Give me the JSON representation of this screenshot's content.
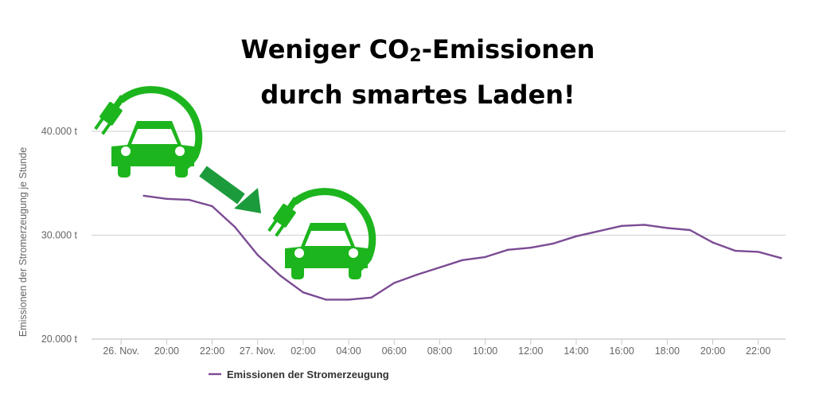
{
  "title": {
    "line1_pre": "Weniger CO",
    "line1_sub": "2",
    "line1_post": "-Emissionen",
    "line2": "durch smartes Laden!"
  },
  "icons": [
    "car-charging-icon",
    "arrow-down-right-icon",
    "car-charging-icon"
  ],
  "colors": {
    "series": "#7b4b94",
    "icon_green": "#1db51d",
    "grid": "#d8d8d8",
    "arrow": "#1c9b3c"
  },
  "chart_data": {
    "type": "line",
    "ylabel": "Emissionen der Stromerzeugung je Stunde",
    "ylim": [
      20000,
      40000
    ],
    "ytick_values": [
      20000,
      30000,
      40000
    ],
    "ytick_labels": [
      "20.000 t",
      "30.000 t",
      "40.000 t"
    ],
    "xlim": [
      -1.3,
      29.2
    ],
    "xtick_positions": [
      0,
      2,
      4,
      6,
      8,
      10,
      12,
      14,
      16,
      18,
      20,
      22,
      24,
      26,
      28
    ],
    "xtick_labels": [
      "26. Nov.",
      "20:00",
      "22:00",
      "27. Nov.",
      "02:00",
      "04:00",
      "06:00",
      "08:00",
      "10:00",
      "12:00",
      "14:00",
      "16:00",
      "18:00",
      "20:00",
      "22:00"
    ],
    "legend_position": "bottom-left",
    "series": [
      {
        "name": "Emissionen der Stromerzeugung",
        "x": [
          1,
          2,
          3,
          4,
          5,
          6,
          7,
          8,
          9,
          10,
          11,
          12,
          13,
          14,
          15,
          16,
          17,
          18,
          19,
          20,
          21,
          22,
          23,
          24,
          25,
          26,
          27,
          28,
          29
        ],
        "values": [
          33800,
          33500,
          33400,
          32800,
          30800,
          28100,
          26100,
          24500,
          23800,
          23800,
          24000,
          25400,
          26200,
          26900,
          27600,
          27900,
          28600,
          28800,
          29200,
          29900,
          30400,
          30900,
          31000,
          30700,
          30500,
          29300,
          28500,
          28400,
          27800
        ]
      }
    ]
  }
}
